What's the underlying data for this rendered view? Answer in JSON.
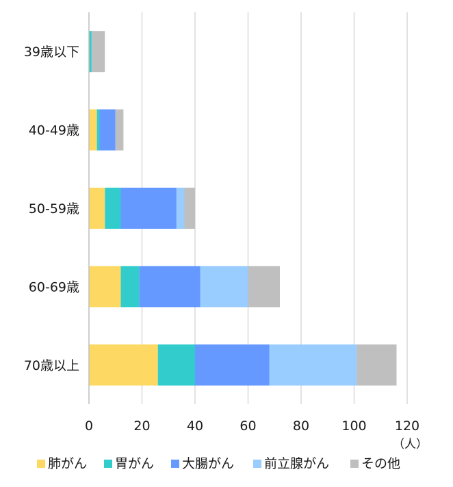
{
  "chart_data": {
    "type": "bar",
    "orientation": "horizontal",
    "stacked": true,
    "categories": [
      "39歳以下",
      "40-49歳",
      "50-59歳",
      "60-69歳",
      "70歳以上"
    ],
    "series": [
      {
        "name": "肺がん",
        "color": "#FDD964",
        "values": [
          0,
          3,
          6,
          12,
          26
        ]
      },
      {
        "name": "胃がん",
        "color": "#33CCCC",
        "values": [
          1,
          1,
          6,
          7,
          14
        ]
      },
      {
        "name": "大腸がん",
        "color": "#6699FF",
        "values": [
          0,
          6,
          21,
          23,
          28
        ]
      },
      {
        "name": "前立腺がん",
        "color": "#99CCFF",
        "values": [
          0,
          0,
          3,
          18,
          33
        ]
      },
      {
        "name": "その他",
        "color": "#BFBFBF",
        "values": [
          5,
          3,
          4,
          12,
          15
        ]
      }
    ],
    "xlim": [
      0,
      120
    ],
    "xticks": [
      0,
      20,
      40,
      60,
      80,
      100,
      120
    ],
    "xlabel": "（人）",
    "ylabel": "",
    "title": "",
    "grid": "vertical",
    "legend_position": "bottom"
  }
}
